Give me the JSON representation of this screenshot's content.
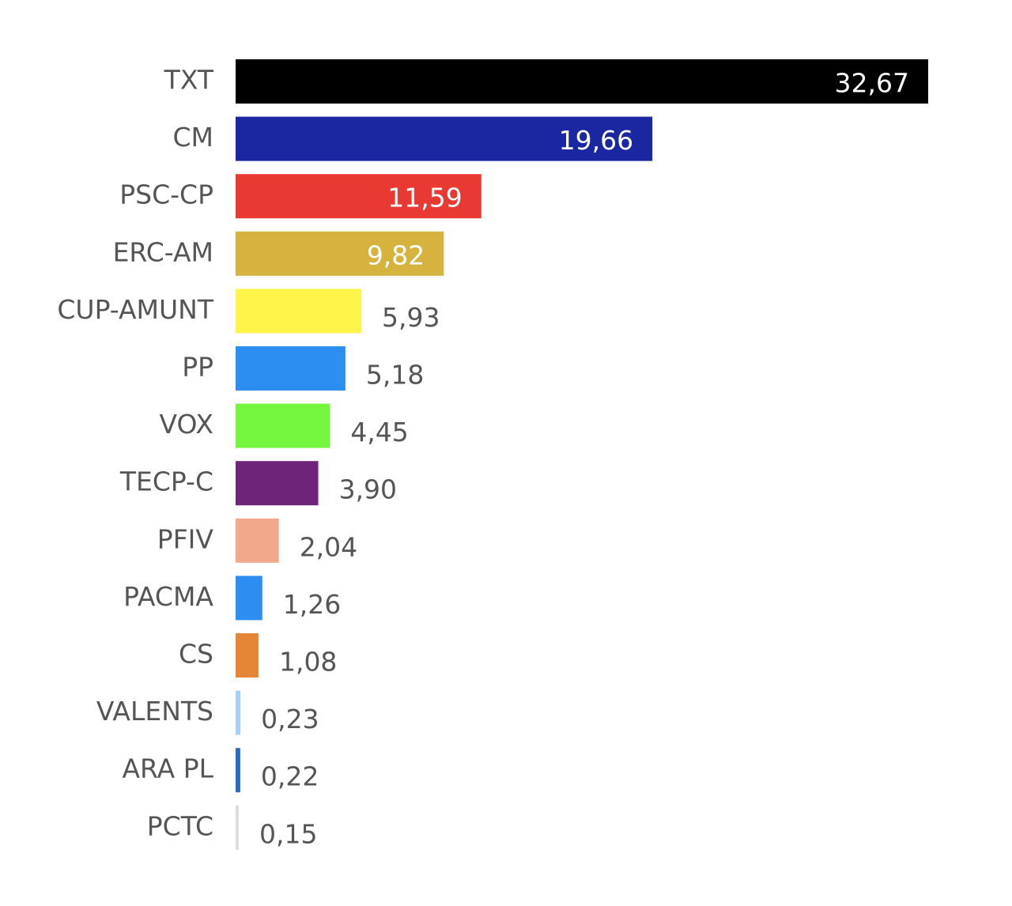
{
  "chart_data": {
    "type": "bar",
    "orientation": "horizontal",
    "categories": [
      "TXT",
      "CM",
      "PSC-CP",
      "ERC-AM",
      "CUP-AMUNT",
      "PP",
      "VOX",
      "TECP-C",
      "PFIV",
      "PACMA",
      "CS",
      "VALENTS",
      "ARA PL",
      "PCTC"
    ],
    "values": [
      32.67,
      19.66,
      11.59,
      9.82,
      5.93,
      5.18,
      4.45,
      3.9,
      2.04,
      1.26,
      1.08,
      0.23,
      0.22,
      0.15
    ],
    "value_labels": [
      "32,67",
      "19,66",
      "11,59",
      "9,82",
      "5,93",
      "5,18",
      "4,45",
      "3,90",
      "2,04",
      "1,26",
      "1,08",
      "0,23",
      "0,22",
      "0,15"
    ],
    "colors": [
      "#000000",
      "#1a27a0",
      "#e83a33",
      "#d6b23f",
      "#fef44a",
      "#2b8ef0",
      "#74f63e",
      "#6e2479",
      "#f0a98a",
      "#2b8ef0",
      "#e58536",
      "#a8d0f5",
      "#2a6bbf",
      "#dddddd"
    ]
  }
}
